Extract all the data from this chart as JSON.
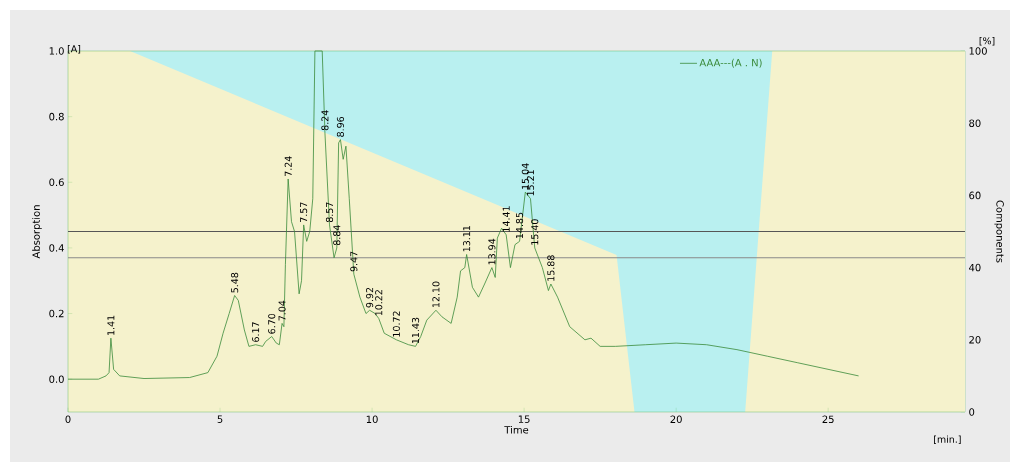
{
  "chart_data": {
    "type": "line",
    "xlabel": "Time",
    "ylabel": "Absorption",
    "y2label": "Components",
    "xlim": [
      0,
      29.5
    ],
    "xticks": [
      0,
      5,
      10,
      15,
      20,
      25
    ],
    "ylim": [
      -0.1,
      1.0
    ],
    "yticks": [
      {
        "value": 0,
        "label": "0.0"
      },
      {
        "value": 0.2,
        "label": "0.2"
      },
      {
        "value": 0.4,
        "label": "0.4"
      },
      {
        "value": 0.6,
        "label": "0.6"
      },
      {
        "value": 0.8,
        "label": "0.8"
      },
      {
        "value": 1.0,
        "label": "1.0"
      }
    ],
    "y2lim": [
      0,
      100
    ],
    "y2ticks": [
      0,
      20,
      40,
      60,
      80,
      100
    ],
    "legend": "top right",
    "series": [
      {
        "type": "area",
        "axis": "y2",
        "color": "#f5f2cc",
        "x": [
          0,
          2.04,
          18.04,
          18.63,
          22.27,
          23.16,
          29.5
        ],
        "values": [
          100,
          100,
          43.5,
          0,
          0,
          100,
          100
        ]
      },
      {
        "name": "AAA---(A . N)",
        "color": "#3a8a3a",
        "x": [
          0,
          1.0,
          1.25,
          1.35,
          1.41,
          1.5,
          1.7,
          2.5,
          4,
          4.6,
          4.9,
          5.1,
          5.3,
          5.48,
          5.6,
          5.8,
          5.95,
          6.17,
          6.4,
          6.5,
          6.7,
          6.85,
          6.95,
          7.04,
          7.1,
          7.15,
          7.24,
          7.35,
          7.45,
          7.6,
          7.68,
          7.75,
          7.85,
          7.95,
          8.05,
          8.12,
          8.36,
          8.45,
          8.6,
          8.75,
          8.84,
          8.9,
          8.96,
          9.05,
          9.14,
          9.25,
          9.4,
          9.6,
          9.8,
          9.92,
          10.1,
          10.22,
          10.4,
          10.8,
          11.2,
          11.43,
          11.6,
          11.8,
          12.1,
          12.3,
          12.6,
          12.8,
          12.91,
          13.05,
          13.11,
          13.3,
          13.5,
          13.7,
          13.94,
          14.05,
          14.12,
          14.26,
          14.41,
          14.55,
          14.7,
          14.85,
          15.04,
          15.21,
          15.35,
          15.6,
          15.8,
          15.88,
          16.1,
          16.5,
          17.0,
          17.2,
          17.5,
          18.0,
          19,
          20,
          21,
          22,
          23,
          24,
          25,
          26
        ],
        "values": [
          0,
          0,
          0.01,
          0.02,
          0.125,
          0.03,
          0.01,
          0.002,
          0.005,
          0.02,
          0.07,
          0.14,
          0.2,
          0.255,
          0.24,
          0.15,
          0.1,
          0.105,
          0.1,
          0.115,
          0.13,
          0.11,
          0.105,
          0.17,
          0.16,
          0.35,
          0.61,
          0.48,
          0.45,
          0.26,
          0.3,
          0.47,
          0.42,
          0.45,
          0.55,
          1.0,
          1.0,
          0.75,
          0.47,
          0.37,
          0.4,
          0.72,
          0.73,
          0.67,
          0.71,
          0.55,
          0.32,
          0.25,
          0.2,
          0.21,
          0.2,
          0.185,
          0.14,
          0.12,
          0.105,
          0.1,
          0.13,
          0.18,
          0.21,
          0.19,
          0.17,
          0.25,
          0.33,
          0.34,
          0.38,
          0.28,
          0.25,
          0.29,
          0.34,
          0.31,
          0.43,
          0.46,
          0.44,
          0.34,
          0.41,
          0.42,
          0.57,
          0.55,
          0.4,
          0.34,
          0.27,
          0.29,
          0.25,
          0.16,
          0.12,
          0.125,
          0.1,
          0.1,
          0.105,
          0.11,
          0.105,
          0.09,
          0.07,
          0.05,
          0.03,
          0.01
        ]
      }
    ],
    "ref_lines": [
      {
        "axis": "y",
        "value": 0.45,
        "color": "#555555"
      },
      {
        "axis": "y",
        "value": 0.37,
        "color": "#8a8a8a"
      }
    ],
    "annotations": [
      "[A]",
      "[%]",
      "[min.]",
      {
        "text": "1.41",
        "x": 1.41,
        "y": 0.125
      },
      {
        "text": "5.48",
        "x": 5.48,
        "y": 0.255
      },
      {
        "text": "6.17",
        "x": 6.17,
        "y": 0.105
      },
      {
        "text": "6.70",
        "x": 6.7,
        "y": 0.13
      },
      {
        "text": "7.04",
        "x": 7.04,
        "y": 0.17
      },
      {
        "text": "7.24",
        "x": 7.24,
        "y": 0.61
      },
      {
        "text": "7.57",
        "x": 7.75,
        "y": 0.47
      },
      {
        "text": "8.24",
        "x": 8.45,
        "y": 0.75
      },
      {
        "text": "8.57",
        "x": 8.6,
        "y": 0.47
      },
      {
        "text": "8.84",
        "x": 8.84,
        "y": 0.4
      },
      {
        "text": "8.96",
        "x": 8.96,
        "y": 0.73
      },
      {
        "text": "9.47",
        "x": 9.4,
        "y": 0.32
      },
      {
        "text": "9.92",
        "x": 9.92,
        "y": 0.21
      },
      {
        "text": "10.22",
        "x": 10.22,
        "y": 0.185
      },
      {
        "text": "10.72",
        "x": 10.8,
        "y": 0.12
      },
      {
        "text": "11.43",
        "x": 11.43,
        "y": 0.1
      },
      {
        "text": "12.10",
        "x": 12.1,
        "y": 0.21
      },
      {
        "text": "13.11",
        "x": 13.11,
        "y": 0.38
      },
      {
        "text": "13.94",
        "x": 13.94,
        "y": 0.34
      },
      {
        "text": "14.41",
        "x": 14.41,
        "y": 0.44
      },
      {
        "text": "14.85",
        "x": 14.85,
        "y": 0.42
      },
      {
        "text": "15.04",
        "x": 15.04,
        "y": 0.57
      },
      {
        "text": "15.21",
        "x": 15.21,
        "y": 0.55
      },
      {
        "text": "15.40",
        "x": 15.35,
        "y": 0.4
      },
      {
        "text": "15.88",
        "x": 15.88,
        "y": 0.29
      }
    ]
  }
}
